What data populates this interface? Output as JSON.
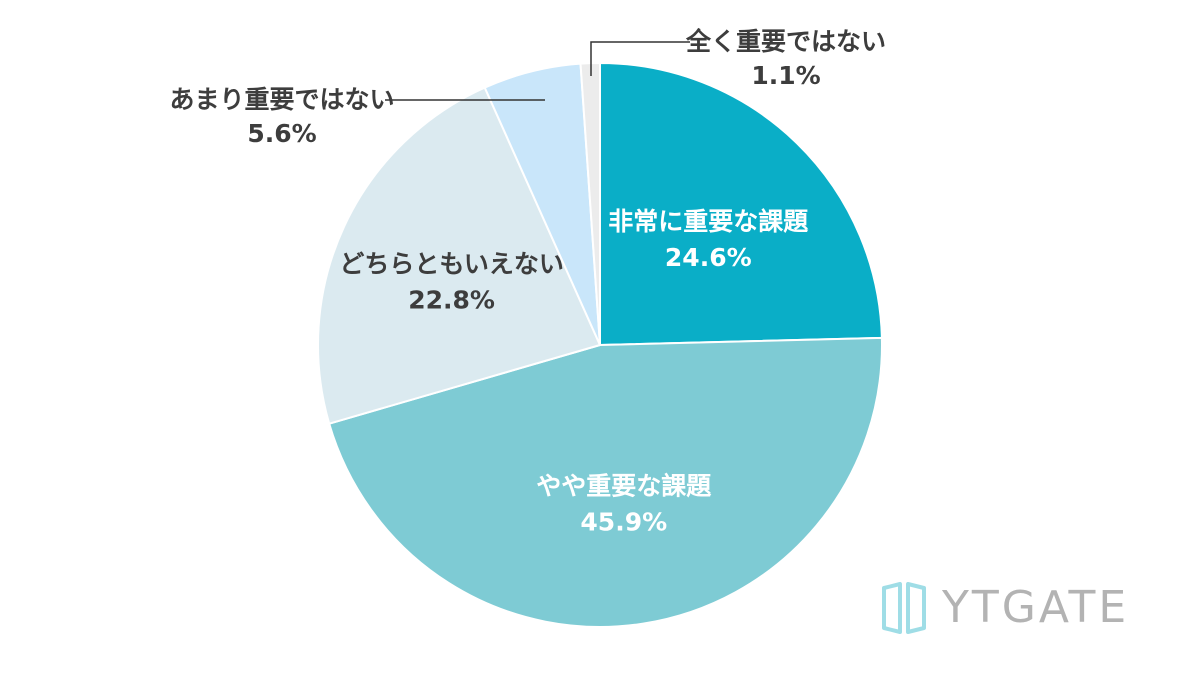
{
  "chart_data": {
    "type": "pie",
    "start_angle_deg": 0,
    "direction": "clockwise",
    "slices": [
      {
        "label": "非常に重要な課題",
        "value": 24.6,
        "display": "24.6%",
        "color": "#0aaec7",
        "text_color": "#ffffff",
        "label_inside": true
      },
      {
        "label": "やや重要な課題",
        "value": 45.9,
        "display": "45.9%",
        "color": "#7ecbd4",
        "text_color": "#ffffff",
        "label_inside": true
      },
      {
        "label": "どちらともいえない",
        "value": 22.8,
        "display": "22.8%",
        "color": "#dbeaf0",
        "text_color": "#3d3d3d",
        "label_inside": true
      },
      {
        "label": "あまり重要ではない",
        "value": 5.6,
        "display": "5.6%",
        "color": "#c9e6fa",
        "text_color": "#3d3d3d",
        "label_inside": false,
        "callout_side": "left"
      },
      {
        "label": "全く重要ではない",
        "value": 1.1,
        "display": "1.1%",
        "color": "#ececec",
        "text_color": "#3d3d3d",
        "label_inside": false,
        "callout_side": "right"
      }
    ],
    "legend": "none",
    "title": ""
  },
  "logo": {
    "text": "YTGATE",
    "icon": "gate-icon",
    "color": "#9fdde6",
    "text_color": "#b3b3b3"
  }
}
